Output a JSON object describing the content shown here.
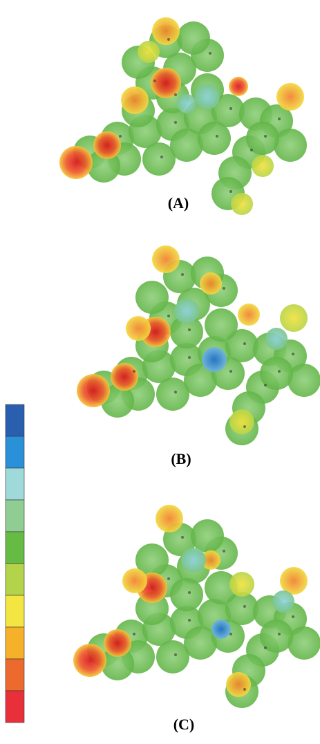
{
  "panels": [
    {
      "label": "(A)"
    },
    {
      "label": "(B)"
    },
    {
      "label": "(C)"
    }
  ],
  "color_scale": [
    "#2a5fb0",
    "#2a90d8",
    "#9fd9d9",
    "#90cd92",
    "#66bb44",
    "#b3d34a",
    "#f3e642",
    "#f6b12b",
    "#ec6a2d",
    "#e8303b"
  ]
}
